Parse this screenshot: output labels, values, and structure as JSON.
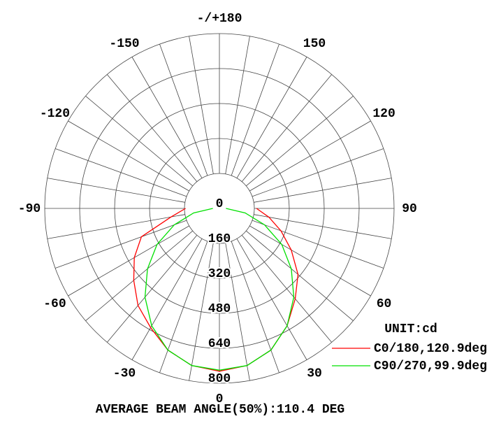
{
  "chart_data": {
    "type": "polar",
    "theta": [
      -90,
      -80,
      -70,
      -60,
      -50,
      -40,
      -30,
      -20,
      -10,
      0,
      10,
      20,
      30,
      40,
      50,
      60,
      70,
      80,
      90
    ],
    "series": [
      {
        "name": "C0/180,120.9deg",
        "color": "#ff0000",
        "values": [
          155,
          225,
          380,
          450,
          512,
          580,
          630,
          690,
          730,
          745,
          730,
          690,
          620,
          540,
          470,
          380,
          300,
          230,
          170
        ]
      },
      {
        "name": "C90/270,99.9deg",
        "color": "#00e000",
        "values": [
          30,
          120,
          220,
          330,
          430,
          530,
          620,
          690,
          730,
          740,
          730,
          690,
          620,
          530,
          430,
          330,
          220,
          120,
          30
        ]
      }
    ],
    "rlim": [
      0,
      800
    ],
    "rticks": [
      0,
      160,
      320,
      480,
      640,
      800
    ],
    "angle_ticks": [
      {
        "value": 180,
        "label": "-/+180"
      },
      -150,
      150,
      -120,
      120,
      -90,
      90,
      -60,
      60,
      -30,
      30,
      0
    ],
    "legend_title": "UNIT:cd",
    "footer": "AVERAGE BEAM ANGLE(50%):110.4 DEG"
  }
}
